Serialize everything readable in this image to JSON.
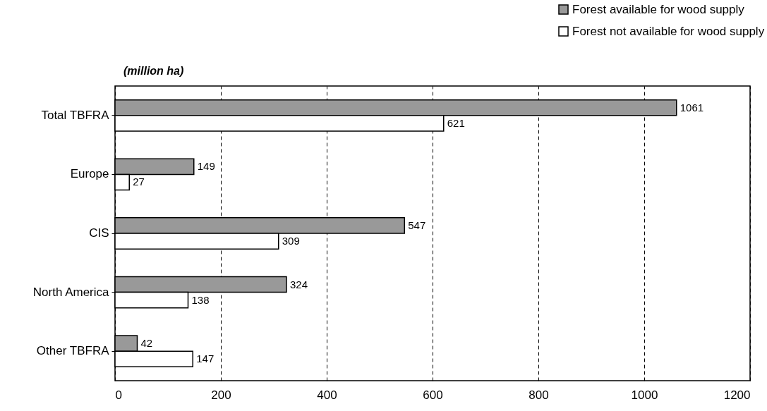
{
  "chart_data": {
    "type": "bar",
    "orientation": "horizontal",
    "annotations": [
      "(million ha)"
    ],
    "categories": [
      "Total TBFRA",
      "Europe",
      "CIS",
      "North America",
      "Other TBFRA"
    ],
    "series": [
      {
        "name": "Forest available for wood supply",
        "color": "#999999",
        "values": [
          1061,
          149,
          547,
          324,
          42
        ]
      },
      {
        "name": "Forest not available for wood supply",
        "color": "#ffffff",
        "values": [
          621,
          27,
          309,
          138,
          147
        ]
      }
    ],
    "xlim": [
      0,
      1200
    ],
    "xticks": [
      0,
      200,
      400,
      600,
      800,
      1000,
      1200
    ],
    "grid": "x",
    "legend": "top right",
    "data_labels": true
  }
}
